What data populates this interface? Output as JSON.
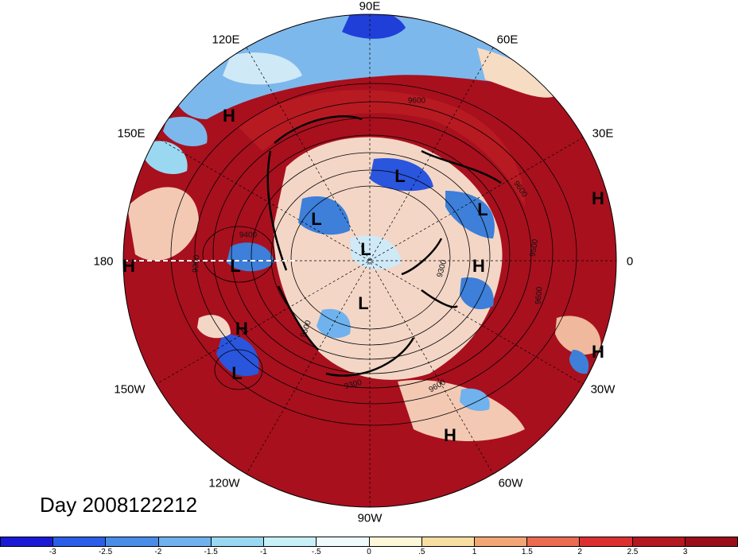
{
  "title": "Day 2008122212",
  "longitude_labels": [
    "90E",
    "60E",
    "30E",
    "0",
    "30W",
    "60W",
    "90W",
    "120W",
    "150W",
    "180",
    "150E",
    "120E"
  ],
  "centers": [
    {
      "type": "H"
    },
    {
      "type": "H"
    },
    {
      "type": "H"
    },
    {
      "type": "H"
    },
    {
      "type": "H"
    },
    {
      "type": "H"
    },
    {
      "type": "H"
    },
    {
      "type": "L"
    },
    {
      "type": "L"
    },
    {
      "type": "L"
    },
    {
      "type": "L"
    },
    {
      "type": "L"
    },
    {
      "type": "L"
    },
    {
      "type": "L"
    }
  ],
  "contour_labels": [
    "9600",
    "9600",
    "9500",
    "9600",
    "9600",
    "9400",
    "9300",
    "9300",
    "9500",
    "9300"
  ],
  "colorbar": {
    "ticks": [
      "-3",
      "-2.5",
      "-2",
      "-1.5",
      "-1",
      "-.5",
      "0",
      ".5",
      "1",
      "1.5",
      "2",
      "2.5",
      "3"
    ],
    "colors": [
      "#1a1ad6",
      "#2b5ee8",
      "#4a8de8",
      "#6fb2ee",
      "#9ad8f2",
      "#c8f0f8",
      "#eefafc",
      "#fff8d8",
      "#f8dea0",
      "#f2a676",
      "#ea6a52",
      "#dc3030",
      "#b41820",
      "#9a0e1c"
    ]
  },
  "colors": {
    "warm": "#a8101e",
    "cool": "#3d7fd9"
  }
}
